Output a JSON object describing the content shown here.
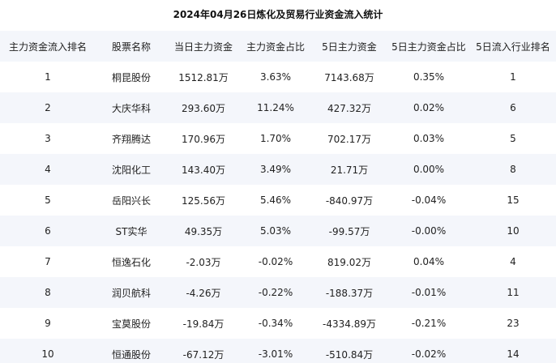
{
  "title": "2024年04月26日炼化及贸易行业资金流入统计",
  "table": {
    "headers": [
      "主力资金流入排名",
      "股票名称",
      "当日主力资金",
      "主力资金占比",
      "5日主力资金",
      "5日主力资金占比",
      "5日流入行业排名"
    ],
    "rows": [
      [
        "1",
        "桐昆股份",
        "1512.81万",
        "3.63%",
        "7143.68万",
        "0.35%",
        "1"
      ],
      [
        "2",
        "大庆华科",
        "293.60万",
        "11.24%",
        "427.32万",
        "0.02%",
        "6"
      ],
      [
        "3",
        "齐翔腾达",
        "170.96万",
        "1.70%",
        "702.17万",
        "0.03%",
        "5"
      ],
      [
        "4",
        "沈阳化工",
        "143.40万",
        "3.49%",
        "21.71万",
        "0.00%",
        "8"
      ],
      [
        "5",
        "岳阳兴长",
        "125.56万",
        "5.46%",
        "-840.97万",
        "-0.04%",
        "15"
      ],
      [
        "6",
        "ST实华",
        "49.35万",
        "5.03%",
        "-99.57万",
        "-0.00%",
        "10"
      ],
      [
        "7",
        "恒逸石化",
        "-2.03万",
        "-0.02%",
        "819.02万",
        "0.04%",
        "4"
      ],
      [
        "8",
        "润贝航科",
        "-4.26万",
        "-0.22%",
        "-188.37万",
        "-0.01%",
        "11"
      ],
      [
        "9",
        "宝莫股份",
        "-19.84万",
        "-0.34%",
        "-4334.89万",
        "-0.21%",
        "23"
      ],
      [
        "10",
        "恒通股份",
        "-67.12万",
        "-3.01%",
        "-510.84万",
        "-0.02%",
        "14"
      ]
    ]
  }
}
